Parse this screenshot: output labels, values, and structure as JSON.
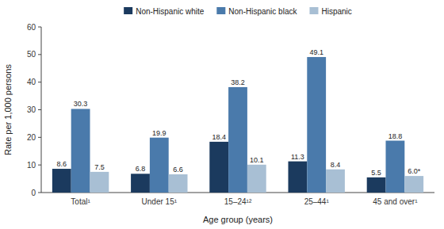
{
  "chart_data": {
    "type": "bar",
    "categories": [
      "Total¹",
      "Under 15¹",
      "15–24¹²",
      "25–44¹",
      "45 and over¹"
    ],
    "series": [
      {
        "name": "Non-Hispanic white",
        "color": "#1b3a5e",
        "values": [
          8.6,
          6.8,
          18.4,
          11.3,
          5.5
        ]
      },
      {
        "name": "Non-Hispanic black",
        "color": "#4a7aab",
        "values": [
          30.3,
          19.9,
          38.2,
          49.1,
          18.8
        ]
      },
      {
        "name": "Hispanic",
        "color": "#a8bfd4",
        "values": [
          7.5,
          6.6,
          10.1,
          8.4,
          6.0
        ],
        "value_labels": [
          "7.5",
          "6.6",
          "10.1",
          "8.4",
          "6.0*"
        ]
      }
    ],
    "xlabel": "Age group (years)",
    "ylabel": "Rate per 1,000 persons",
    "ylim": [
      0,
      60
    ],
    "yticks": [
      0,
      10,
      20,
      30,
      40,
      50,
      60
    ],
    "grid": false,
    "legend": "top",
    "data_labels": true
  }
}
